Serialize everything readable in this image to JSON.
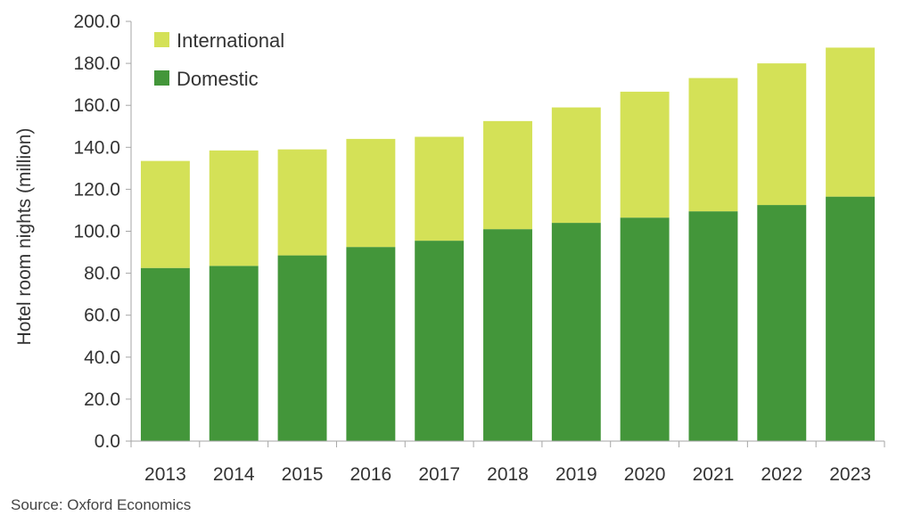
{
  "chart_data": {
    "type": "bar",
    "stacked": true,
    "title": "",
    "xlabel": "",
    "ylabel": "Hotel room nights (million)",
    "ylim": [
      0,
      200
    ],
    "yticks": [
      "0.0",
      "20.0",
      "40.0",
      "60.0",
      "80.0",
      "100.0",
      "120.0",
      "140.0",
      "160.0",
      "180.0",
      "200.0"
    ],
    "categories": [
      "2013",
      "2014",
      "2015",
      "2016",
      "2017",
      "2018",
      "2019",
      "2020",
      "2021",
      "2022",
      "2023"
    ],
    "series": [
      {
        "name": "Domestic",
        "color": "#43963a",
        "values": [
          82.5,
          83.5,
          88.5,
          92.5,
          95.5,
          101.0,
          104.0,
          106.5,
          109.5,
          112.5,
          116.5
        ]
      },
      {
        "name": "International",
        "color": "#d4e157",
        "values": [
          51.0,
          55.0,
          50.5,
          51.5,
          49.5,
          51.5,
          55.0,
          60.0,
          63.5,
          67.5,
          71.0
        ]
      }
    ],
    "legend": {
      "position": "top-left",
      "entries": [
        "International",
        "Domestic"
      ]
    },
    "grid": false
  },
  "source": "Source:  Oxford Economics"
}
